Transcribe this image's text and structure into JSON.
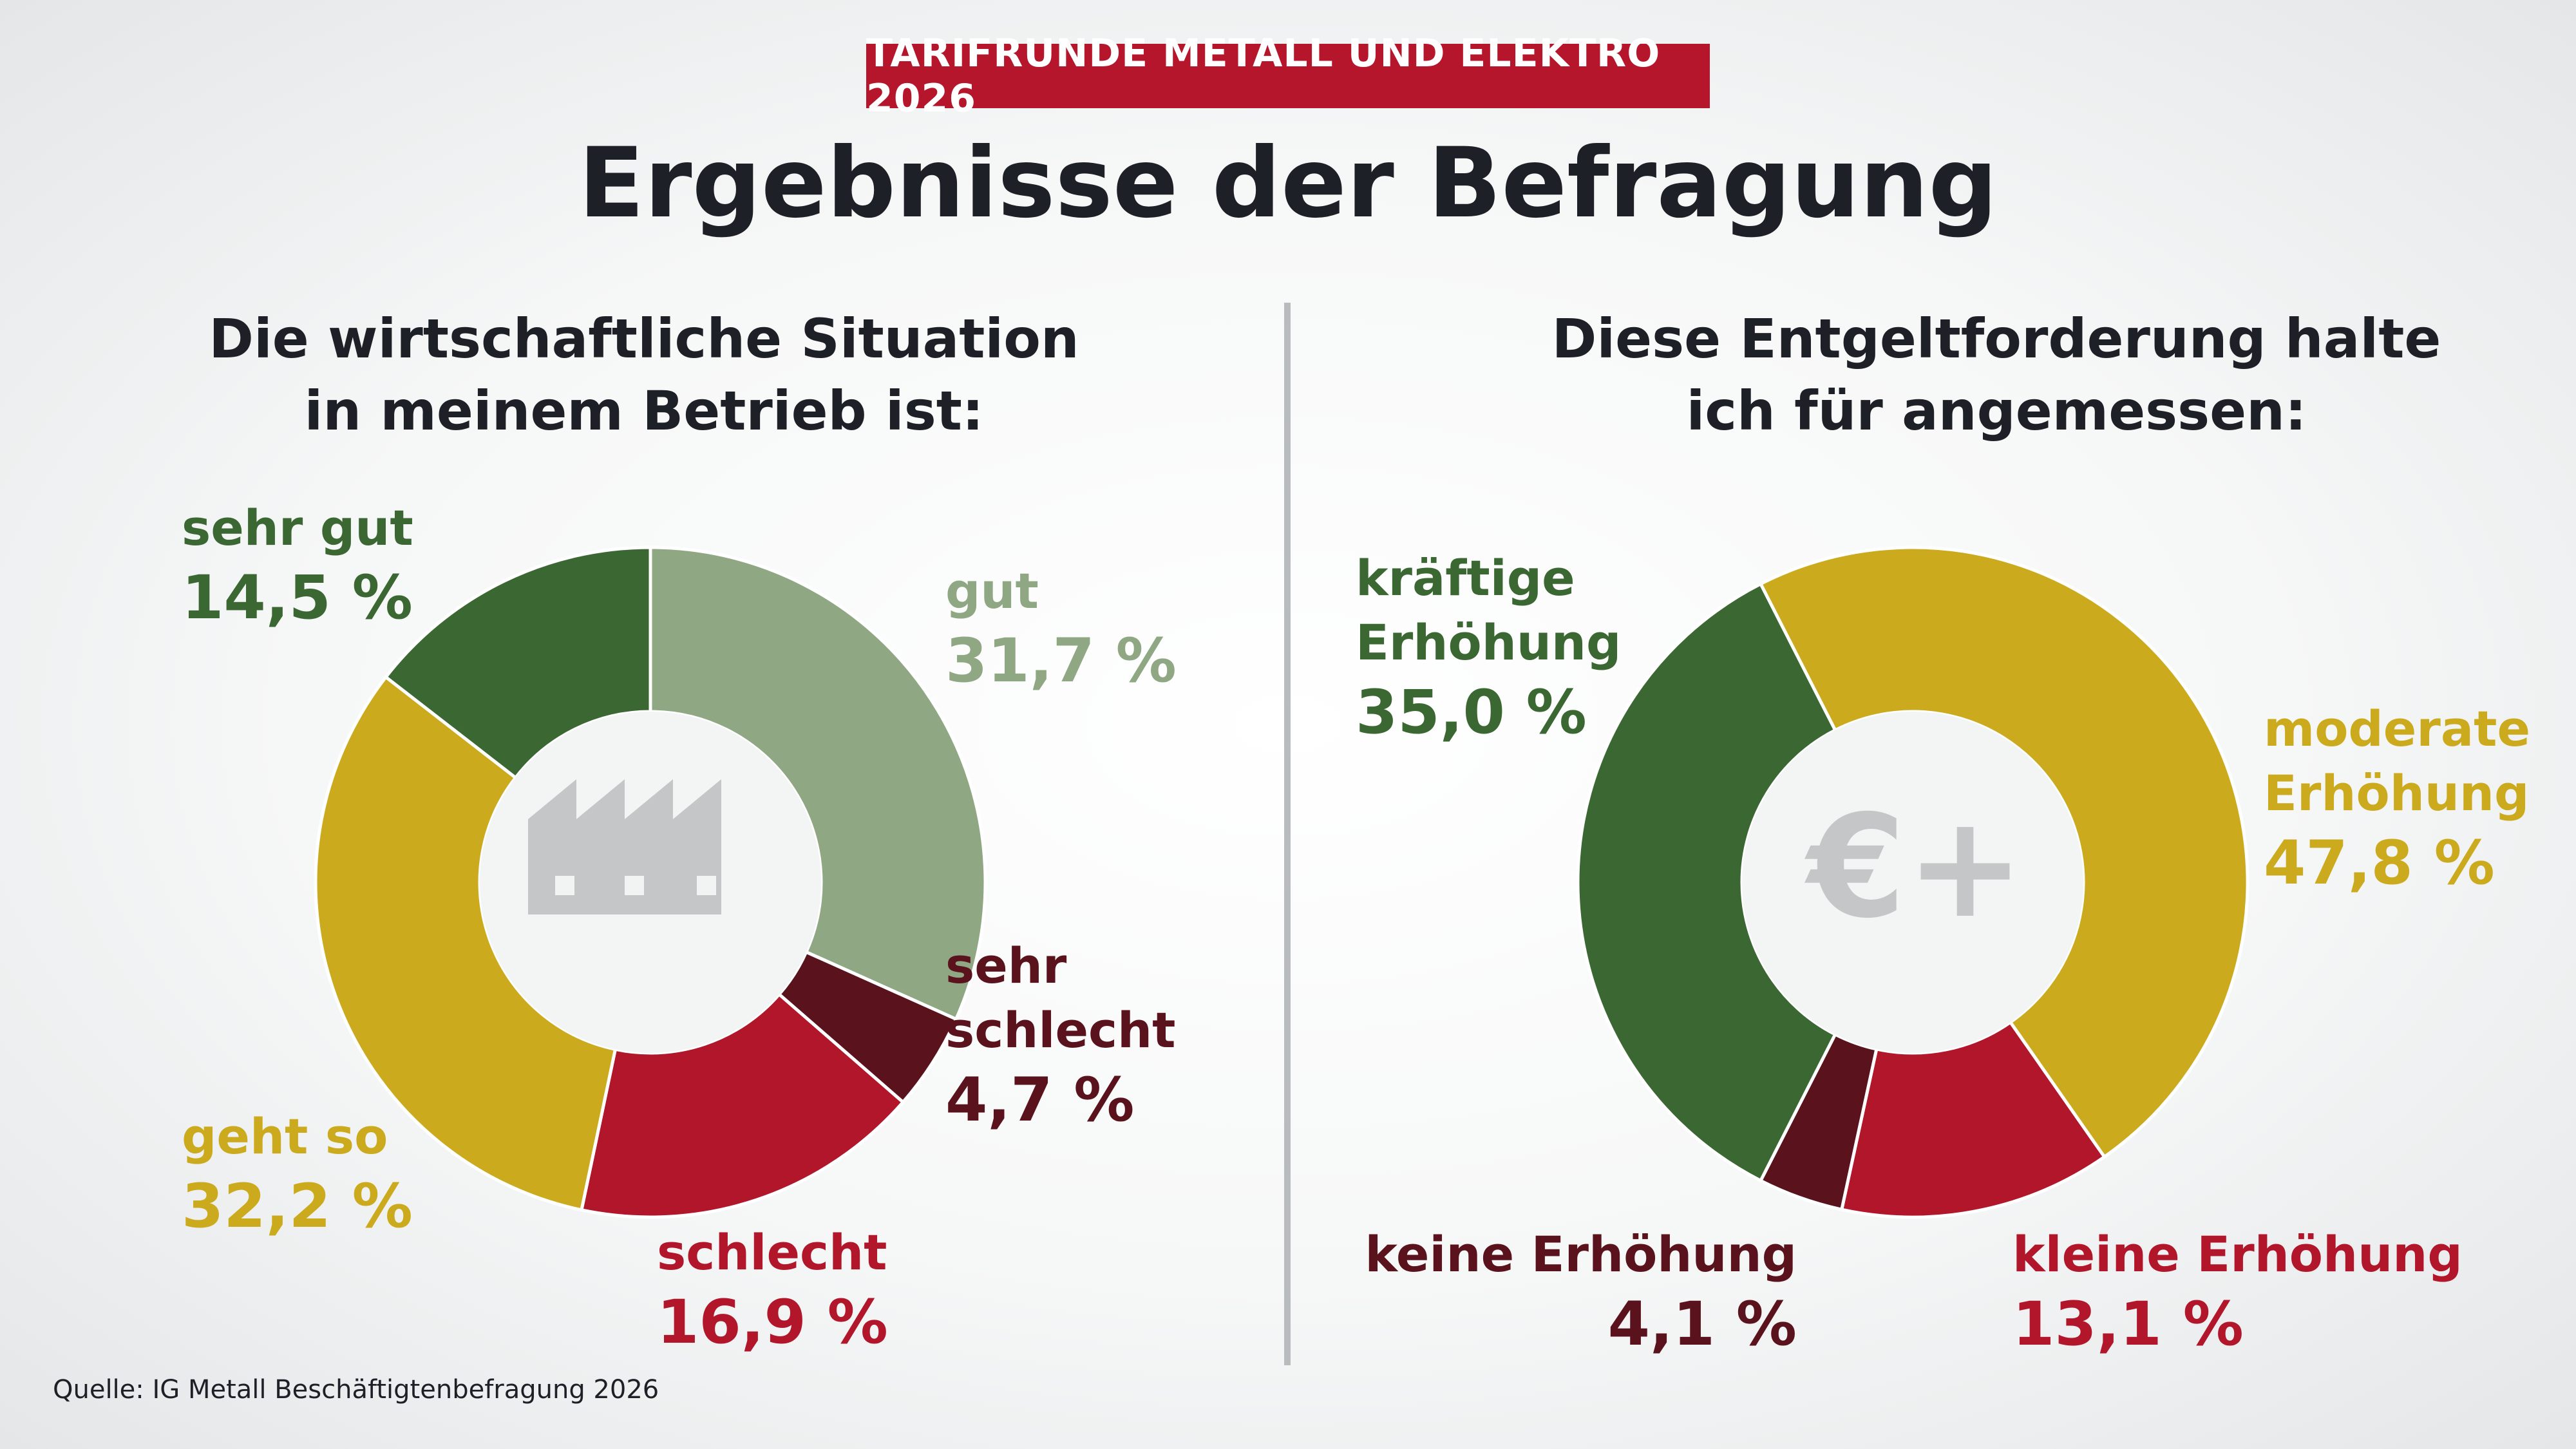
{
  "kicker": "TARIFRUNDE METALL UND ELEKTRO 2026",
  "title": "Ergebnisse der Befragung",
  "source": "Quelle: IG Metall Beschäftigtenbefragung 2026",
  "colors": {
    "dark_green": "#3b6832",
    "light_green": "#8fa783",
    "yellow": "#ccaa1e",
    "red": "#b1162a",
    "dark_red": "#5a131c",
    "icon_gray": "#c4c6c8",
    "kicker_red": "#b5162b"
  },
  "icons": {
    "left": "factory-icon",
    "right": "euro-plus-icon"
  },
  "chart_data": [
    {
      "type": "pie",
      "title": "Die wirtschaftliche Situation in meinem Betrieb ist:",
      "title_lines": [
        "Die wirtschaftliche Situation",
        "in meinem Betrieb ist:"
      ],
      "unit": "%",
      "slices": [
        {
          "label": "gut",
          "label_lines": [
            "gut"
          ],
          "value": 31.7,
          "value_label": "31,7 %",
          "color": "#8fa783"
        },
        {
          "label": "sehr schlecht",
          "label_lines": [
            "sehr",
            "schlecht"
          ],
          "value": 4.7,
          "value_label": "4,7 %",
          "color": "#5a131c"
        },
        {
          "label": "schlecht",
          "label_lines": [
            "schlecht"
          ],
          "value": 16.9,
          "value_label": "16,9 %",
          "color": "#b1162a"
        },
        {
          "label": "geht so",
          "label_lines": [
            "geht so"
          ],
          "value": 32.2,
          "value_label": "32,2 %",
          "color": "#ccaa1e"
        },
        {
          "label": "sehr gut",
          "label_lines": [
            "sehr gut"
          ],
          "value": 14.5,
          "value_label": "14,5 %",
          "color": "#3b6832"
        }
      ]
    },
    {
      "type": "pie",
      "title": "Diese Entgeltforderung halte ich für angemessen:",
      "title_lines": [
        "Diese Entgeltforderung halte",
        "ich für angemessen:"
      ],
      "unit": "%",
      "slices": [
        {
          "label": "moderate Erhöhung",
          "label_lines": [
            "moderate",
            "Erhöhung"
          ],
          "value": 47.8,
          "value_label": "47,8 %",
          "color": "#ccaa1e"
        },
        {
          "label": "kleine Erhöhung",
          "label_lines": [
            "kleine Erhöhung"
          ],
          "value": 13.1,
          "value_label": "13,1 %",
          "color": "#b1162a"
        },
        {
          "label": "keine Erhöhung",
          "label_lines": [
            "keine Erhöhung"
          ],
          "value": 4.1,
          "value_label": "4,1 %",
          "color": "#5a131c"
        },
        {
          "label": "kräftige Erhöhung",
          "label_lines": [
            "kräftige",
            "Erhöhung"
          ],
          "value": 35.0,
          "value_label": "35,0 %",
          "color": "#3b6832"
        }
      ]
    }
  ]
}
